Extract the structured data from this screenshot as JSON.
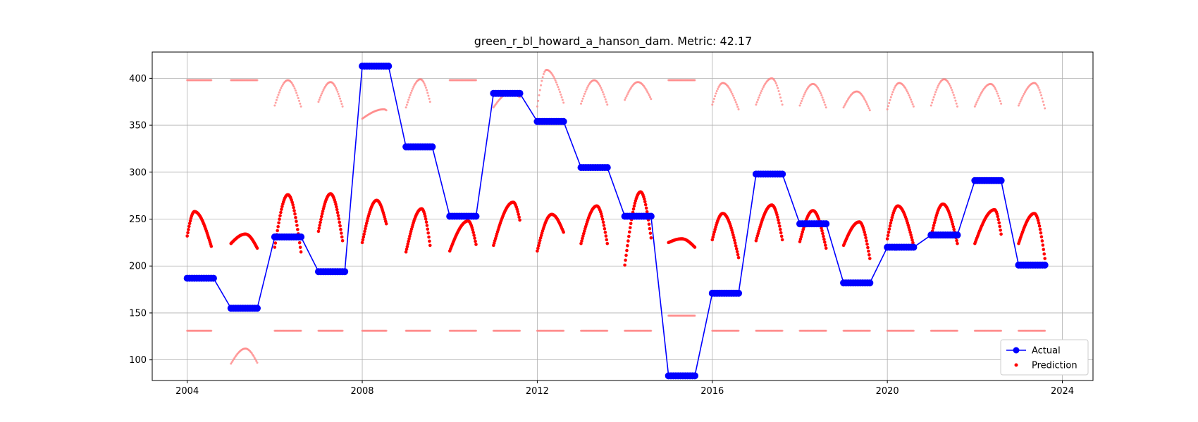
{
  "chart_data": {
    "type": "line",
    "title": "green_r_bl_howard_a_hanson_dam. Metric: 42.17",
    "xlabel": "",
    "ylabel": "",
    "xlim": [
      2003.2,
      2024.7
    ],
    "ylim": [
      78,
      428
    ],
    "x_ticks": [
      2004,
      2008,
      2012,
      2016,
      2020,
      2024
    ],
    "y_ticks": [
      100,
      150,
      200,
      250,
      300,
      350,
      400
    ],
    "grid": true,
    "legend_position": "lower-right",
    "colors": {
      "actual": "#0000ff",
      "prediction": "#ff0000",
      "prediction_faint": "#ff8a8a"
    },
    "series": [
      {
        "name": "Actual",
        "kind": "line-marker",
        "segments": [
          {
            "x_start": 2004.0,
            "x_end": 2004.6,
            "y": 187
          },
          {
            "x_start": 2005.0,
            "x_end": 2005.6,
            "y": 155
          },
          {
            "x_start": 2006.0,
            "x_end": 2006.6,
            "y": 231
          },
          {
            "x_start": 2007.0,
            "x_end": 2007.6,
            "y": 194
          },
          {
            "x_start": 2008.0,
            "x_end": 2008.6,
            "y": 413
          },
          {
            "x_start": 2009.0,
            "x_end": 2009.6,
            "y": 327
          },
          {
            "x_start": 2010.0,
            "x_end": 2010.6,
            "y": 253
          },
          {
            "x_start": 2011.0,
            "x_end": 2011.6,
            "y": 384
          },
          {
            "x_start": 2012.0,
            "x_end": 2012.6,
            "y": 354
          },
          {
            "x_start": 2013.0,
            "x_end": 2013.6,
            "y": 305
          },
          {
            "x_start": 2014.0,
            "x_end": 2014.6,
            "y": 253
          },
          {
            "x_start": 2015.0,
            "x_end": 2015.6,
            "y": 83
          },
          {
            "x_start": 2016.0,
            "x_end": 2016.6,
            "y": 171
          },
          {
            "x_start": 2017.0,
            "x_end": 2017.6,
            "y": 298
          },
          {
            "x_start": 2018.0,
            "x_end": 2018.6,
            "y": 245
          },
          {
            "x_start": 2019.0,
            "x_end": 2019.6,
            "y": 182
          },
          {
            "x_start": 2020.0,
            "x_end": 2020.6,
            "y": 220
          },
          {
            "x_start": 2021.0,
            "x_end": 2021.6,
            "y": 233
          },
          {
            "x_start": 2022.0,
            "x_end": 2022.6,
            "y": 291
          },
          {
            "x_start": 2023.0,
            "x_end": 2023.6,
            "y": 201
          }
        ]
      },
      {
        "name": "Prediction",
        "kind": "scatter",
        "seasons": [
          {
            "x_start": 2004.0,
            "x_end": 2004.55,
            "start": 232,
            "peak": 258,
            "end": 221,
            "peak_frac": 0.3
          },
          {
            "x_start": 2005.0,
            "x_end": 2005.6,
            "start": 224,
            "peak": 234,
            "end": 219,
            "peak_frac": 0.55
          },
          {
            "x_start": 2006.0,
            "x_end": 2006.6,
            "start": 220,
            "peak": 276,
            "end": 215,
            "peak_frac": 0.5
          },
          {
            "x_start": 2007.0,
            "x_end": 2007.55,
            "start": 237,
            "peak": 277,
            "end": 227,
            "peak_frac": 0.5
          },
          {
            "x_start": 2008.0,
            "x_end": 2008.55,
            "start": 225,
            "peak": 270,
            "end": 245,
            "peak_frac": 0.6
          },
          {
            "x_start": 2009.0,
            "x_end": 2009.55,
            "start": 215,
            "peak": 261,
            "end": 222,
            "peak_frac": 0.65
          },
          {
            "x_start": 2010.0,
            "x_end": 2010.6,
            "start": 216,
            "peak": 248,
            "end": 223,
            "peak_frac": 0.7
          },
          {
            "x_start": 2011.0,
            "x_end": 2011.6,
            "start": 222,
            "peak": 268,
            "end": 249,
            "peak_frac": 0.75
          },
          {
            "x_start": 2012.0,
            "x_end": 2012.6,
            "start": 216,
            "peak": 255,
            "end": 236,
            "peak_frac": 0.55
          },
          {
            "x_start": 2013.0,
            "x_end": 2013.6,
            "start": 224,
            "peak": 264,
            "end": 224,
            "peak_frac": 0.6
          },
          {
            "x_start": 2014.0,
            "x_end": 2014.6,
            "start": 201,
            "peak": 279,
            "end": 230,
            "peak_frac": 0.6
          },
          {
            "x_start": 2015.0,
            "x_end": 2015.6,
            "start": 225,
            "peak": 229,
            "end": 220,
            "peak_frac": 0.5
          },
          {
            "x_start": 2016.0,
            "x_end": 2016.6,
            "start": 228,
            "peak": 256,
            "end": 209,
            "peak_frac": 0.4
          },
          {
            "x_start": 2017.0,
            "x_end": 2017.6,
            "start": 227,
            "peak": 265,
            "end": 228,
            "peak_frac": 0.6
          },
          {
            "x_start": 2018.0,
            "x_end": 2018.6,
            "start": 226,
            "peak": 259,
            "end": 219,
            "peak_frac": 0.5
          },
          {
            "x_start": 2019.0,
            "x_end": 2019.6,
            "start": 222,
            "peak": 247,
            "end": 208,
            "peak_frac": 0.6
          },
          {
            "x_start": 2020.0,
            "x_end": 2020.6,
            "start": 229,
            "peak": 264,
            "end": 222,
            "peak_frac": 0.4
          },
          {
            "x_start": 2021.0,
            "x_end": 2021.6,
            "start": 231,
            "peak": 266,
            "end": 224,
            "peak_frac": 0.45
          },
          {
            "x_start": 2022.0,
            "x_end": 2022.6,
            "start": 224,
            "peak": 260,
            "end": 234,
            "peak_frac": 0.75
          },
          {
            "x_start": 2023.0,
            "x_end": 2023.6,
            "start": 224,
            "peak": 256,
            "end": 208,
            "peak_frac": 0.6
          }
        ],
        "upper_band": [
          {
            "x_start": 2004.0,
            "x_end": 2004.55,
            "start": 398,
            "peak": 398,
            "end": 398,
            "peak_frac": 0.5
          },
          {
            "x_start": 2005.0,
            "x_end": 2005.6,
            "start": 398,
            "peak": 398,
            "end": 398,
            "peak_frac": 0.5
          },
          {
            "x_start": 2006.0,
            "x_end": 2006.6,
            "start": 371,
            "peak": 398,
            "end": 370,
            "peak_frac": 0.5
          },
          {
            "x_start": 2007.0,
            "x_end": 2007.55,
            "start": 375,
            "peak": 396,
            "end": 370,
            "peak_frac": 0.5
          },
          {
            "x_start": 2008.0,
            "x_end": 2008.55,
            "start": 357,
            "peak": 367,
            "end": 366,
            "peak_frac": 0.9
          },
          {
            "x_start": 2009.0,
            "x_end": 2009.55,
            "start": 369,
            "peak": 399,
            "end": 375,
            "peak_frac": 0.6
          },
          {
            "x_start": 2010.0,
            "x_end": 2010.6,
            "start": 398,
            "peak": 398,
            "end": 398,
            "peak_frac": 0.5
          },
          {
            "x_start": 2011.0,
            "x_end": 2011.6,
            "start": 369,
            "peak": 384,
            "end": 380,
            "peak_frac": 0.6
          },
          {
            "x_start": 2012.0,
            "x_end": 2012.6,
            "start": 370,
            "peak": 409,
            "end": 374,
            "peak_frac": 0.35
          },
          {
            "x_start": 2013.0,
            "x_end": 2013.6,
            "start": 373,
            "peak": 398,
            "end": 372,
            "peak_frac": 0.5
          },
          {
            "x_start": 2014.0,
            "x_end": 2014.6,
            "start": 377,
            "peak": 396,
            "end": 378,
            "peak_frac": 0.5
          },
          {
            "x_start": 2015.0,
            "x_end": 2015.6,
            "start": 398,
            "peak": 398,
            "end": 398,
            "peak_frac": 0.5
          },
          {
            "x_start": 2016.0,
            "x_end": 2016.6,
            "start": 372,
            "peak": 395,
            "end": 367,
            "peak_frac": 0.4
          },
          {
            "x_start": 2017.0,
            "x_end": 2017.6,
            "start": 372,
            "peak": 400,
            "end": 372,
            "peak_frac": 0.6
          },
          {
            "x_start": 2018.0,
            "x_end": 2018.6,
            "start": 371,
            "peak": 394,
            "end": 369,
            "peak_frac": 0.5
          },
          {
            "x_start": 2019.0,
            "x_end": 2019.6,
            "start": 369,
            "peak": 386,
            "end": 366,
            "peak_frac": 0.5
          },
          {
            "x_start": 2020.0,
            "x_end": 2020.6,
            "start": 367,
            "peak": 395,
            "end": 370,
            "peak_frac": 0.45
          },
          {
            "x_start": 2021.0,
            "x_end": 2021.6,
            "start": 371,
            "peak": 399,
            "end": 370,
            "peak_frac": 0.5
          },
          {
            "x_start": 2022.0,
            "x_end": 2022.6,
            "start": 370,
            "peak": 394,
            "end": 373,
            "peak_frac": 0.6
          },
          {
            "x_start": 2023.0,
            "x_end": 2023.6,
            "start": 371,
            "peak": 395,
            "end": 368,
            "peak_frac": 0.6
          }
        ],
        "lower_band": [
          {
            "x_start": 2004.0,
            "x_end": 2004.55,
            "start": 131,
            "peak": 131,
            "end": 131,
            "peak_frac": 0.5
          },
          {
            "x_start": 2005.0,
            "x_end": 2005.6,
            "start": 96,
            "peak": 112,
            "end": 97,
            "peak_frac": 0.55
          },
          {
            "x_start": 2006.0,
            "x_end": 2006.6,
            "start": 131,
            "peak": 131,
            "end": 131,
            "peak_frac": 0.5
          },
          {
            "x_start": 2007.0,
            "x_end": 2007.55,
            "start": 131,
            "peak": 131,
            "end": 131,
            "peak_frac": 0.5
          },
          {
            "x_start": 2008.0,
            "x_end": 2008.55,
            "start": 131,
            "peak": 131,
            "end": 131,
            "peak_frac": 0.5
          },
          {
            "x_start": 2009.0,
            "x_end": 2009.55,
            "start": 131,
            "peak": 131,
            "end": 131,
            "peak_frac": 0.5
          },
          {
            "x_start": 2010.0,
            "x_end": 2010.6,
            "start": 131,
            "peak": 131,
            "end": 131,
            "peak_frac": 0.5
          },
          {
            "x_start": 2011.0,
            "x_end": 2011.6,
            "start": 131,
            "peak": 131,
            "end": 131,
            "peak_frac": 0.5
          },
          {
            "x_start": 2012.0,
            "x_end": 2012.6,
            "start": 131,
            "peak": 131,
            "end": 131,
            "peak_frac": 0.5
          },
          {
            "x_start": 2013.0,
            "x_end": 2013.6,
            "start": 131,
            "peak": 131,
            "end": 131,
            "peak_frac": 0.5
          },
          {
            "x_start": 2014.0,
            "x_end": 2014.6,
            "start": 131,
            "peak": 131,
            "end": 131,
            "peak_frac": 0.5
          },
          {
            "x_start": 2015.0,
            "x_end": 2015.6,
            "start": 147,
            "peak": 147,
            "end": 147,
            "peak_frac": 0.5
          },
          {
            "x_start": 2016.0,
            "x_end": 2016.6,
            "start": 131,
            "peak": 131,
            "end": 131,
            "peak_frac": 0.5
          },
          {
            "x_start": 2017.0,
            "x_end": 2017.6,
            "start": 131,
            "peak": 131,
            "end": 131,
            "peak_frac": 0.5
          },
          {
            "x_start": 2018.0,
            "x_end": 2018.6,
            "start": 131,
            "peak": 131,
            "end": 131,
            "peak_frac": 0.5
          },
          {
            "x_start": 2019.0,
            "x_end": 2019.6,
            "start": 131,
            "peak": 131,
            "end": 131,
            "peak_frac": 0.5
          },
          {
            "x_start": 2020.0,
            "x_end": 2020.6,
            "start": 131,
            "peak": 131,
            "end": 131,
            "peak_frac": 0.5
          },
          {
            "x_start": 2021.0,
            "x_end": 2021.6,
            "start": 131,
            "peak": 131,
            "end": 131,
            "peak_frac": 0.5
          },
          {
            "x_start": 2022.0,
            "x_end": 2022.6,
            "start": 131,
            "peak": 131,
            "end": 131,
            "peak_frac": 0.5
          },
          {
            "x_start": 2023.0,
            "x_end": 2023.6,
            "start": 131,
            "peak": 131,
            "end": 131,
            "peak_frac": 0.5
          }
        ]
      }
    ],
    "legend": [
      {
        "label": "Actual",
        "marker": "line-dot"
      },
      {
        "label": "Prediction",
        "marker": "dot"
      }
    ]
  }
}
